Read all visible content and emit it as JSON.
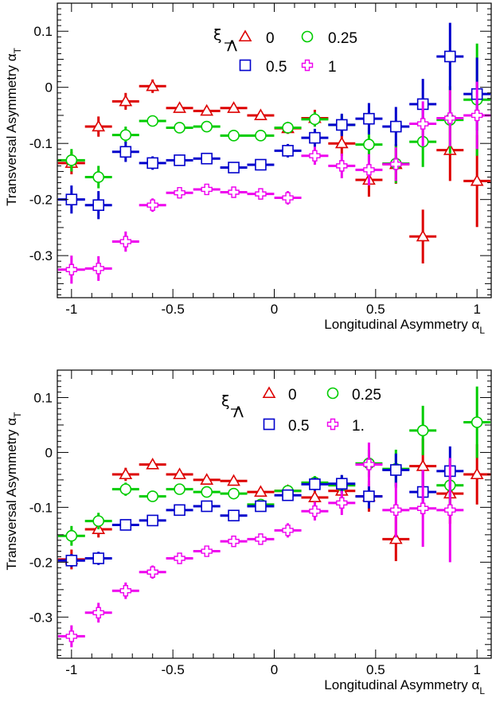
{
  "chart_data": [
    {
      "type": "scatter",
      "xlabel": "Longitudinal Asymmetry α",
      "xlabel_sub": "L",
      "ylabel": "Transversal Asymmetry α",
      "ylabel_sub": "T",
      "xlim": [
        -1.07,
        1.07
      ],
      "ylim": [
        -0.375,
        0.15
      ],
      "xticks": [
        -1,
        -0.5,
        0,
        0.5,
        1
      ],
      "xtick_labels": [
        "-1",
        "-0.5",
        "0",
        "0.5",
        "1"
      ],
      "yticks": [
        -0.3,
        -0.2,
        -0.1,
        0,
        0.1
      ],
      "ytick_labels": [
        "-0.3",
        "-0.2",
        "-0.1",
        "0",
        "0.1"
      ],
      "x_error": 0.0667,
      "legend": {
        "title": "ξ",
        "title_sub": "Λ",
        "title_bar": true,
        "placement": "top-center"
      },
      "series": [
        {
          "name": "0",
          "marker": "triangle",
          "color": "#dd0000",
          "x": [
            -1,
            -0.867,
            -0.733,
            -0.6,
            -0.467,
            -0.333,
            -0.2,
            -0.067,
            0.067,
            0.2,
            0.333,
            0.467,
            0.6,
            0.733,
            0.867,
            1
          ],
          "y": [
            -0.135,
            -0.07,
            -0.025,
            0.002,
            -0.037,
            -0.042,
            -0.037,
            -0.05,
            -0.073,
            -0.055,
            -0.1,
            -0.165,
            -0.137,
            -0.266,
            -0.112,
            -0.167
          ],
          "err": [
            0.02,
            0.018,
            0.015,
            0.012,
            0.008,
            0.007,
            0.007,
            0.008,
            0.01,
            0.015,
            0.022,
            0.03,
            0.035,
            0.048,
            0.055,
            0.082
          ]
        },
        {
          "name": "0.25",
          "marker": "circle",
          "color": "#00cc00",
          "x": [
            -1,
            -0.867,
            -0.733,
            -0.6,
            -0.467,
            -0.333,
            -0.2,
            -0.067,
            0.067,
            0.2,
            0.333,
            0.467,
            0.6,
            0.733,
            0.867,
            1
          ],
          "y": [
            -0.13,
            -0.16,
            -0.085,
            -0.06,
            -0.072,
            -0.07,
            -0.086,
            -0.086,
            -0.072,
            -0.057,
            -0.067,
            -0.102,
            -0.136,
            -0.097,
            -0.058,
            -0.022
          ],
          "err": [
            0.02,
            0.02,
            0.015,
            0.01,
            0.008,
            0.007,
            0.007,
            0.008,
            0.01,
            0.013,
            0.018,
            0.03,
            0.035,
            0.045,
            0.06,
            0.1
          ]
        },
        {
          "name": "0.5",
          "marker": "square",
          "color": "#0000cc",
          "x": [
            -1,
            -0.867,
            -0.733,
            -0.6,
            -0.467,
            -0.333,
            -0.2,
            -0.067,
            0.067,
            0.2,
            0.333,
            0.467,
            0.6,
            0.733,
            0.867,
            1
          ],
          "y": [
            -0.2,
            -0.21,
            -0.115,
            -0.135,
            -0.13,
            -0.127,
            -0.143,
            -0.138,
            -0.113,
            -0.09,
            -0.067,
            -0.056,
            -0.07,
            -0.03,
            0.055,
            -0.012
          ],
          "err": [
            0.025,
            0.025,
            0.018,
            0.012,
            0.01,
            0.008,
            0.008,
            0.009,
            0.012,
            0.016,
            0.02,
            0.028,
            0.035,
            0.045,
            0.06,
            0.065
          ]
        },
        {
          "name": "1",
          "marker": "cross",
          "color": "#ee00ee",
          "x": [
            -1,
            -0.867,
            -0.733,
            -0.6,
            -0.467,
            -0.333,
            -0.2,
            -0.067,
            0.067,
            0.2,
            0.333,
            0.467,
            0.6,
            0.733,
            0.867,
            1
          ],
          "y": [
            -0.325,
            -0.323,
            -0.275,
            -0.21,
            -0.188,
            -0.182,
            -0.187,
            -0.19,
            -0.197,
            -0.122,
            -0.14,
            -0.147,
            -0.137,
            -0.065,
            -0.055,
            -0.05
          ],
          "err": [
            0.025,
            0.022,
            0.018,
            0.012,
            0.01,
            0.008,
            0.008,
            0.01,
            0.012,
            0.016,
            0.022,
            0.028,
            0.03,
            0.04,
            0.05,
            0.06
          ]
        }
      ]
    },
    {
      "type": "scatter",
      "xlabel": "Longitudinal Asymmetry α",
      "xlabel_sub": "L",
      "ylabel": "Transversal Asymmetry α",
      "ylabel_sub": "T",
      "xlim": [
        -1.07,
        1.07
      ],
      "ylim": [
        -0.375,
        0.15
      ],
      "xticks": [
        -1,
        -0.5,
        0,
        0.5,
        1
      ],
      "xtick_labels": [
        "-1",
        "-0.5",
        "0",
        "0.5",
        "1"
      ],
      "yticks": [
        -0.3,
        -0.2,
        -0.1,
        0,
        0.1
      ],
      "ytick_labels": [
        "-0.3",
        "-0.2",
        "-0.1",
        "0",
        "0.1"
      ],
      "x_error": 0.0667,
      "legend": {
        "title": "ξ",
        "title_sub": "Λ",
        "title_bar": true,
        "placement": "top-center"
      },
      "series": [
        {
          "name": "0",
          "marker": "triangle",
          "color": "#dd0000",
          "x": [
            -1,
            -0.867,
            -0.733,
            -0.6,
            -0.467,
            -0.333,
            -0.2,
            -0.067,
            0.067,
            0.2,
            0.333,
            0.467,
            0.6,
            0.733,
            0.867,
            1
          ],
          "y": [
            -0.195,
            -0.14,
            -0.04,
            -0.022,
            -0.04,
            -0.05,
            -0.052,
            -0.072,
            -0.07,
            -0.082,
            -0.07,
            -0.08,
            -0.158,
            -0.025,
            -0.075,
            -0.04
          ],
          "err": [
            0.018,
            0.015,
            0.012,
            0.008,
            0.007,
            0.006,
            0.006,
            0.007,
            0.009,
            0.012,
            0.018,
            0.028,
            0.04,
            0.05,
            0.055,
            0.055
          ]
        },
        {
          "name": "0.25",
          "marker": "circle",
          "color": "#00cc00",
          "x": [
            -1,
            -0.867,
            -0.733,
            -0.6,
            -0.467,
            -0.333,
            -0.2,
            -0.067,
            0.067,
            0.2,
            0.333,
            0.467,
            0.6,
            0.733,
            0.867,
            1
          ],
          "y": [
            -0.152,
            -0.125,
            -0.067,
            -0.08,
            -0.067,
            -0.072,
            -0.075,
            -0.095,
            -0.07,
            -0.055,
            -0.06,
            -0.02,
            -0.03,
            0.04,
            -0.06,
            0.055
          ],
          "err": [
            0.018,
            0.015,
            0.012,
            0.008,
            0.007,
            0.006,
            0.006,
            0.007,
            0.009,
            0.012,
            0.018,
            0.025,
            0.035,
            0.045,
            0.05,
            0.065
          ]
        },
        {
          "name": "0.5",
          "marker": "square",
          "color": "#0000cc",
          "x": [
            -1,
            -0.867,
            -0.733,
            -0.6,
            -0.467,
            -0.333,
            -0.2,
            -0.067,
            0.067,
            0.2,
            0.333,
            0.467,
            0.6,
            0.733,
            0.867,
            1
          ],
          "y": [
            -0.197,
            -0.193,
            -0.132,
            -0.124,
            -0.105,
            -0.098,
            -0.115,
            -0.098,
            -0.078,
            -0.058,
            -0.057,
            -0.08,
            -0.032,
            -0.072,
            -0.034,
            null
          ],
          "err": [
            0.012,
            0.012,
            0.01,
            0.008,
            0.007,
            0.006,
            0.006,
            0.007,
            0.009,
            0.012,
            0.016,
            0.022,
            0.03,
            0.04,
            0.045,
            0
          ]
        },
        {
          "name": "1.",
          "marker": "cross",
          "color": "#ee00ee",
          "x": [
            -1,
            -0.867,
            -0.733,
            -0.6,
            -0.467,
            -0.333,
            -0.2,
            -0.067,
            0.067,
            0.2,
            0.333,
            0.467,
            0.6,
            0.733,
            0.867,
            1
          ],
          "y": [
            -0.335,
            -0.292,
            -0.252,
            -0.218,
            -0.193,
            -0.18,
            -0.162,
            -0.158,
            -0.142,
            -0.107,
            -0.092,
            -0.022,
            -0.105,
            -0.102,
            -0.105,
            null
          ],
          "err": [
            0.02,
            0.018,
            0.015,
            0.012,
            0.01,
            0.009,
            0.009,
            0.01,
            0.013,
            0.017,
            0.022,
            0.04,
            0.05,
            0.07,
            0.095,
            0
          ]
        }
      ]
    }
  ]
}
